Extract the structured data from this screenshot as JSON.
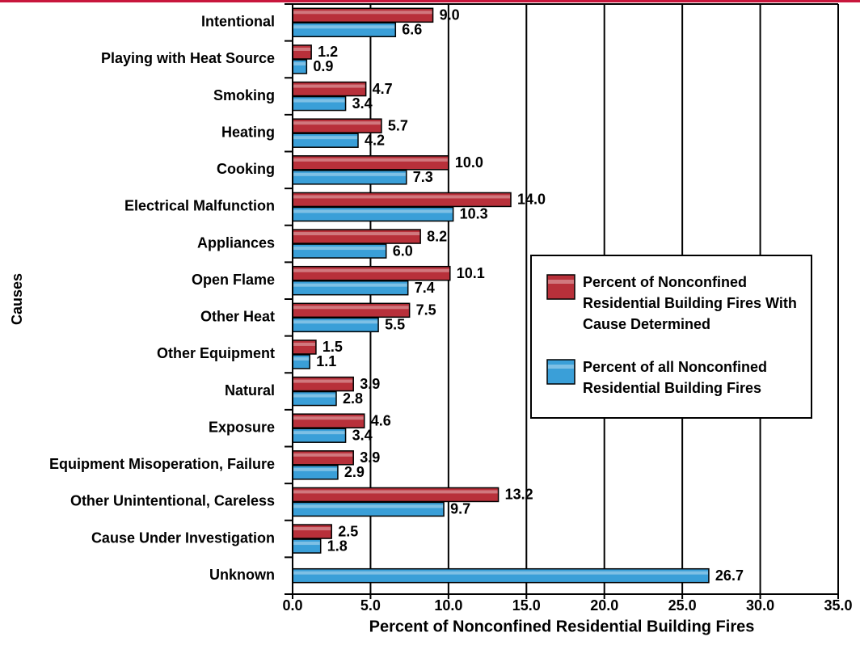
{
  "chart_data": {
    "type": "bar",
    "orientation": "horizontal",
    "x_label": "Percent of Nonconfined Residential Building Fires",
    "y_label": "Causes",
    "categories": [
      "Intentional",
      "Playing with Heat Source",
      "Smoking",
      "Heating",
      "Cooking",
      "Electrical Malfunction",
      "Appliances",
      "Open Flame",
      "Other Heat",
      "Other Equipment",
      "Natural",
      "Exposure",
      "Equipment Misoperation, Failure",
      "Other Unintentional, Careless",
      "Cause Under Investigation",
      "Unknown"
    ],
    "series": [
      {
        "name": "Percent of Nonconfined Residential Building Fires With Cause Determined",
        "color": "#b8303a",
        "values": [
          9.0,
          1.2,
          4.7,
          5.7,
          10.0,
          14.0,
          8.2,
          10.1,
          7.5,
          1.5,
          3.9,
          4.6,
          3.9,
          13.2,
          2.5,
          null
        ],
        "value_labels": [
          "9.0",
          "1.2",
          "4.7",
          "5.7",
          "10.0",
          "14.0",
          "8.2",
          "10.1",
          "7.5",
          "1.5",
          "3.9",
          "4.6",
          "3.9",
          "13.2",
          "2.5",
          null
        ]
      },
      {
        "name": "Percent of all Nonconfined Residential Building Fires",
        "color": "#3a9fd8",
        "values": [
          6.6,
          0.9,
          3.4,
          4.2,
          7.3,
          10.3,
          6.0,
          7.4,
          5.5,
          1.1,
          2.8,
          3.4,
          2.9,
          9.7,
          1.8,
          26.7
        ],
        "value_labels": [
          "6.6",
          "0.9",
          "3.4",
          "4.2",
          "7.3",
          "10.3",
          "6.0",
          "7.4",
          "5.5",
          "1.1",
          "2.8",
          "3.4",
          "2.9",
          "9.7",
          "1.8",
          "26.7"
        ]
      }
    ],
    "xlim": [
      0,
      35
    ],
    "xticks": [
      {
        "value": 0,
        "label": "0.0"
      },
      {
        "value": 5,
        "label": "5.0"
      },
      {
        "value": 10,
        "label": "10.0"
      },
      {
        "value": 15,
        "label": "15.0"
      },
      {
        "value": 20,
        "label": "20.0"
      },
      {
        "value": 25,
        "label": "25.0"
      },
      {
        "value": 30,
        "label": "30.0"
      },
      {
        "value": 35,
        "label": "35.0"
      }
    ],
    "grid": true,
    "legend": "right"
  }
}
